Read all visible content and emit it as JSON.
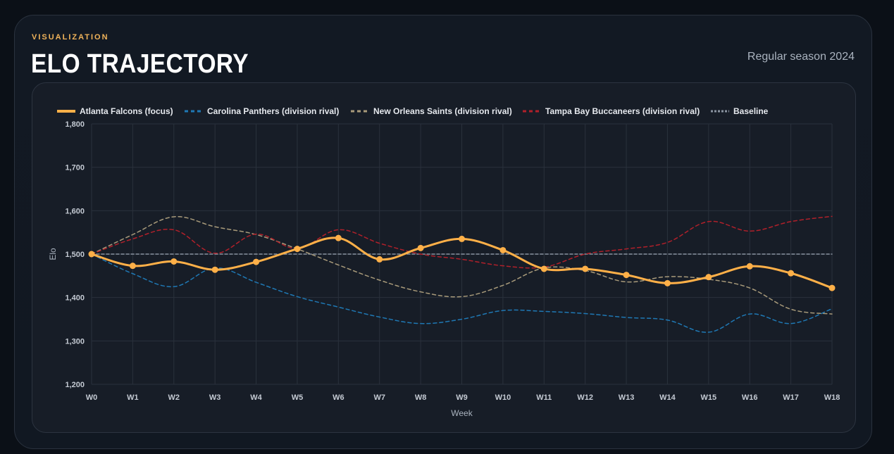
{
  "header": {
    "eyebrow": "VISUALIZATION",
    "title": "ELO TRAJECTORY",
    "subtitle": "Regular season 2024"
  },
  "colors": {
    "focus": "#ffb048",
    "panthers": "#1f78b4",
    "saints": "#a89a7a",
    "buccaneers": "#b0202a",
    "baseline": "#8a93a0",
    "grid": "#2a313c",
    "tick": "#c4cad3"
  },
  "chart_data": {
    "type": "line",
    "xlabel": "Week",
    "ylabel": "Elo",
    "ylim": [
      1200,
      1800
    ],
    "yticks": [
      1200,
      1300,
      1400,
      1500,
      1600,
      1700,
      1800
    ],
    "ytick_labels": [
      "1,200",
      "1,300",
      "1,400",
      "1,500",
      "1,600",
      "1,700",
      "1,800"
    ],
    "grid": true,
    "legend_position": "top-left",
    "categories": [
      "W0",
      "W1",
      "W2",
      "W3",
      "W4",
      "W5",
      "W6",
      "W7",
      "W8",
      "W9",
      "W10",
      "W11",
      "W12",
      "W13",
      "W14",
      "W15",
      "W16",
      "W17",
      "W18"
    ],
    "series": [
      {
        "name": "Atlanta Falcons (focus)",
        "style": "solid",
        "markers": true,
        "color": "#ffb048",
        "values": [
          1500,
          1473,
          1483,
          1464,
          1482,
          1512,
          1537,
          1488,
          1514,
          1535,
          1509,
          1466,
          1466,
          1452,
          1433,
          1447,
          1472,
          1456,
          1422
        ]
      },
      {
        "name": "Carolina Panthers (division rival)",
        "style": "dashed",
        "markers": false,
        "color": "#1f78b4",
        "values": [
          1500,
          1455,
          1425,
          1468,
          1435,
          1402,
          1378,
          1355,
          1340,
          1350,
          1370,
          1368,
          1363,
          1354,
          1348,
          1320,
          1362,
          1340,
          1374
        ]
      },
      {
        "name": "New Orleans Saints (division rival)",
        "style": "dashed",
        "markers": false,
        "color": "#a89a7a",
        "values": [
          1500,
          1545,
          1586,
          1563,
          1545,
          1512,
          1475,
          1440,
          1413,
          1402,
          1428,
          1468,
          1462,
          1436,
          1448,
          1442,
          1422,
          1373,
          1362
        ]
      },
      {
        "name": "Tampa Bay Buccaneers (division rival)",
        "style": "dashed",
        "markers": false,
        "color": "#b0202a",
        "values": [
          1500,
          1535,
          1556,
          1502,
          1546,
          1513,
          1556,
          1525,
          1500,
          1488,
          1473,
          1470,
          1500,
          1512,
          1527,
          1575,
          1553,
          1575,
          1587
        ]
      },
      {
        "name": "Baseline",
        "style": "dashed",
        "markers": false,
        "color": "#8a93a0",
        "values": [
          1500,
          1500,
          1500,
          1500,
          1500,
          1500,
          1500,
          1500,
          1500,
          1500,
          1500,
          1500,
          1500,
          1500,
          1500,
          1500,
          1500,
          1500,
          1500
        ]
      }
    ]
  }
}
